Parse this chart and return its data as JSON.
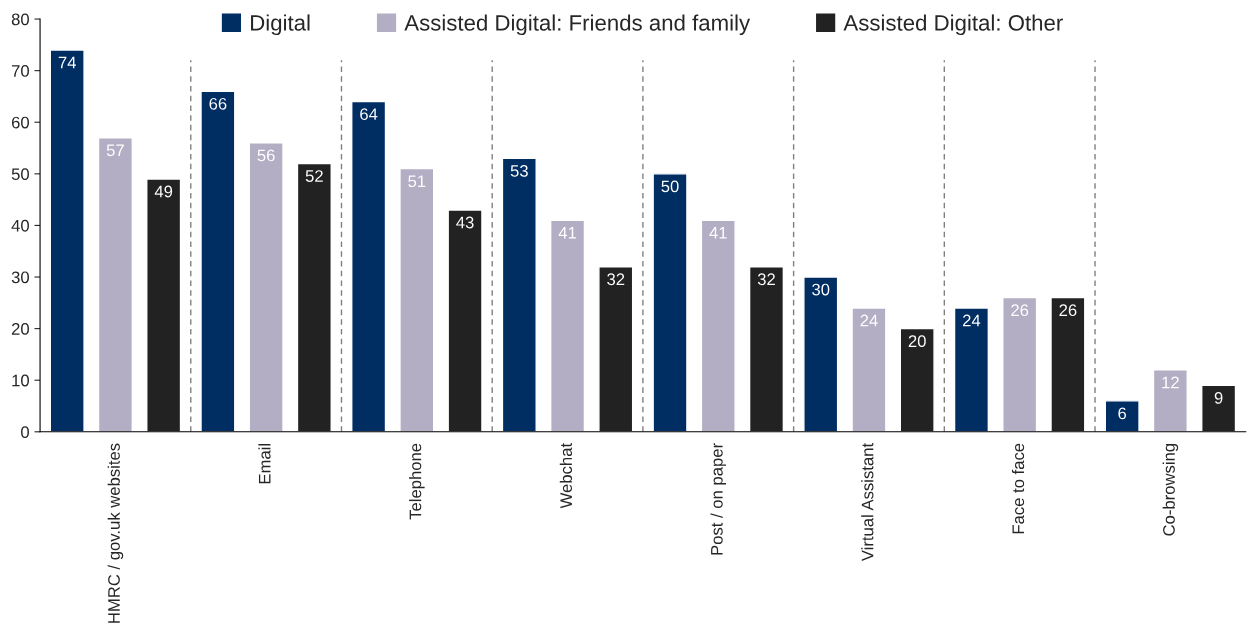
{
  "chart_data": {
    "type": "bar",
    "categories": [
      "HMRC / gov.uk websites",
      "Email",
      "Telephone",
      "Webchat",
      "Post / on paper",
      "Virtual Assistant",
      "Face to face",
      "Co-browsing"
    ],
    "series": [
      {
        "name": "Digital",
        "color": "#002d62",
        "values": [
          74,
          66,
          64,
          53,
          50,
          30,
          24,
          6
        ]
      },
      {
        "name": "Assisted Digital: Friends and family",
        "color": "#b3aec4",
        "values": [
          57,
          56,
          51,
          41,
          41,
          24,
          26,
          12
        ]
      },
      {
        "name": "Assisted Digital: Other",
        "color": "#222222",
        "values": [
          49,
          52,
          43,
          32,
          32,
          20,
          26,
          9
        ]
      }
    ],
    "ylim": [
      0,
      80
    ],
    "yticks": [
      0,
      10,
      20,
      30,
      40,
      50,
      60,
      70,
      80
    ],
    "data_labels": true,
    "legend": "top",
    "grid": false
  }
}
